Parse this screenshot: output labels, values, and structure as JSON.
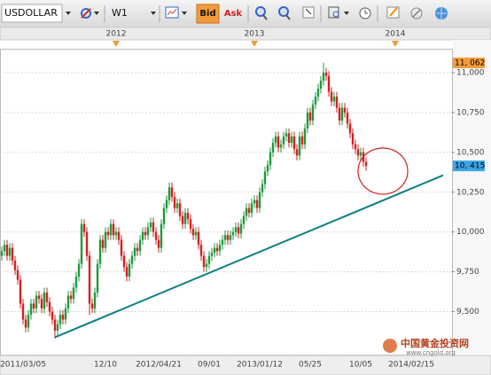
{
  "toolbar": {
    "symbol": "USDOLLAR",
    "timeframe": "W1",
    "bid": "Bid",
    "ask": "Ask"
  },
  "watermark": {
    "name": "中国黄金投资网",
    "url": "www.cngold.org"
  },
  "chart_data": {
    "type": "candlestick",
    "up_color": "#1e9a3c",
    "down_color": "#d42020",
    "grid": true,
    "ylim": [
      9230,
      11145
    ],
    "yticks": [
      {
        "value": 9500,
        "label": "9,500"
      },
      {
        "value": 9750,
        "label": "9,750"
      },
      {
        "value": 10000,
        "label": "10,000"
      },
      {
        "value": 10250,
        "label": "10,250"
      },
      {
        "value": 10500,
        "label": "10,500"
      },
      {
        "value": 10750,
        "label": "10,750"
      },
      {
        "value": 11000,
        "label": "11,000"
      }
    ],
    "categories": [
      null,
      null,
      null,
      null,
      null,
      null,
      null,
      null,
      "2011/03/05",
      null,
      null,
      null,
      null,
      null,
      null,
      null,
      null,
      null,
      null,
      null,
      null,
      null,
      null,
      null,
      null,
      null,
      null,
      null,
      null,
      null,
      null,
      null,
      null,
      null,
      null,
      null,
      null,
      null,
      null,
      "12/10",
      null,
      null,
      null,
      null,
      null,
      null,
      null,
      null,
      null,
      null,
      null,
      null,
      null,
      null,
      null,
      null,
      null,
      null,
      null,
      "2012/04/21",
      null,
      null,
      null,
      null,
      null,
      null,
      null,
      null,
      null,
      null,
      null,
      null,
      null,
      null,
      null,
      null,
      null,
      null,
      "09/01",
      null,
      null,
      null,
      null,
      null,
      null,
      null,
      null,
      null,
      null,
      null,
      null,
      null,
      null,
      null,
      null,
      null,
      null,
      "2013/01/12",
      null,
      null,
      null,
      null,
      null,
      null,
      null,
      null,
      null,
      null,
      null,
      null,
      null,
      null,
      null,
      null,
      null,
      null,
      "05/25",
      null,
      null,
      null,
      null,
      null,
      null,
      null,
      null,
      null,
      null,
      null,
      null,
      null,
      null,
      null,
      null,
      null,
      null,
      "10/05",
      null,
      null,
      null,
      null,
      null,
      null,
      null,
      null,
      null,
      null,
      null,
      null,
      null,
      null,
      null,
      null,
      null,
      null,
      "2014/02/15"
    ],
    "top_categories": [
      null,
      null,
      null,
      null,
      null,
      null,
      null,
      null,
      null,
      null,
      null,
      null,
      null,
      null,
      null,
      null,
      null,
      null,
      null,
      null,
      null,
      null,
      null,
      null,
      null,
      null,
      null,
      null,
      null,
      null,
      null,
      null,
      null,
      null,
      null,
      null,
      null,
      null,
      null,
      null,
      null,
      null,
      null,
      "2012",
      null,
      null,
      null,
      null,
      null,
      null,
      null,
      null,
      null,
      null,
      null,
      null,
      null,
      null,
      null,
      null,
      null,
      null,
      null,
      null,
      null,
      null,
      null,
      null,
      null,
      null,
      null,
      null,
      null,
      null,
      null,
      null,
      null,
      null,
      null,
      null,
      null,
      null,
      null,
      null,
      null,
      null,
      null,
      null,
      null,
      null,
      null,
      null,
      null,
      null,
      null,
      "2013",
      null,
      null,
      null,
      null,
      null,
      null,
      null,
      null,
      null,
      null,
      null,
      null,
      null,
      null,
      null,
      null,
      null,
      null,
      null,
      null,
      null,
      null,
      null,
      null,
      null,
      null,
      null,
      null,
      null,
      null,
      null,
      null,
      null,
      null,
      null,
      null,
      null,
      null,
      null,
      null,
      null,
      null,
      null,
      null,
      null,
      null,
      null,
      null,
      null,
      null,
      null,
      null,
      "2014",
      null,
      null,
      null,
      null,
      null,
      null
    ],
    "open": [
      9850,
      9880,
      9920,
      9850,
      9900,
      9820,
      9760,
      9700,
      9550,
      9450,
      9400,
      9480,
      9550,
      9520,
      9600,
      9580,
      9520,
      9620,
      9560,
      9500,
      9450,
      9380,
      9420,
      9480,
      9450,
      9520,
      9600,
      9580,
      9650,
      9720,
      9800,
      10050,
      10000,
      9850,
      9550,
      9520,
      9620,
      9800,
      9950,
      9900,
      10000,
      9980,
      10050,
      9980,
      10000,
      9950,
      9850,
      9780,
      9720,
      9800,
      9850,
      9900,
      9880,
      9950,
      10000,
      9980,
      10030,
      10060,
      10000,
      9950,
      9900,
      10050,
      10150,
      10200,
      10280,
      10220,
      10150,
      10180,
      10100,
      10050,
      10120,
      10080,
      10020,
      9980,
      10000,
      9920,
      9850,
      9780,
      9800,
      9850,
      9870,
      9900,
      9880,
      9920,
      9950,
      9980,
      9950,
      9980,
      10000,
      10030,
      9990,
      10050,
      10100,
      10150,
      10120,
      10180,
      10200,
      10150,
      10250,
      10300,
      10380,
      10420,
      10500,
      10560,
      10600,
      10530,
      10550,
      10600,
      10620,
      10560,
      10600,
      10520,
      10480,
      10600,
      10550,
      10650,
      10750,
      10700,
      10800,
      10850,
      10900,
      10950,
      11000,
      10980,
      10880,
      10820,
      10850,
      10780,
      10700,
      10780,
      10750,
      10680,
      10620,
      10550,
      10520,
      10480,
      10500,
      10440,
      null,
      null,
      null,
      null,
      null,
      null,
      null,
      null,
      null,
      null,
      null,
      null,
      null,
      null,
      null,
      null,
      null
    ],
    "high": [
      9910,
      9950,
      9950,
      9930,
      9930,
      9850,
      9790,
      9730,
      9580,
      9480,
      9510,
      9580,
      9580,
      9630,
      9630,
      9610,
      9650,
      9650,
      9590,
      9530,
      9480,
      9450,
      9510,
      9510,
      9550,
      9630,
      9630,
      9680,
      9750,
      9830,
      10080,
      10080,
      10030,
      9880,
      9580,
      9650,
      9830,
      9980,
      9980,
      10030,
      10030,
      10080,
      10080,
      10030,
      10030,
      9980,
      9880,
      9810,
      9830,
      9880,
      9930,
      9930,
      9980,
      10030,
      10030,
      10060,
      10090,
      10090,
      10030,
      9980,
      10080,
      10180,
      10230,
      10310,
      10310,
      10250,
      10210,
      10210,
      10130,
      10150,
      10150,
      10110,
      10050,
      10030,
      10030,
      9950,
      9880,
      9830,
      9880,
      9900,
      9930,
      9930,
      9950,
      9980,
      10010,
      10010,
      10010,
      10030,
      10060,
      10060,
      10080,
      10130,
      10180,
      10180,
      10210,
      10230,
      10230,
      10280,
      10330,
      10410,
      10450,
      10530,
      10590,
      10630,
      10630,
      10580,
      10630,
      10650,
      10650,
      10630,
      10630,
      10550,
      10630,
      10630,
      10680,
      10780,
      10780,
      10830,
      10880,
      10930,
      10980,
      11062,
      11030,
      11010,
      10910,
      10880,
      10880,
      10810,
      10810,
      10810,
      10780,
      10710,
      10650,
      10580,
      10550,
      10530,
      10530,
      10470,
      null,
      null,
      null,
      null,
      null,
      null,
      null,
      null,
      null,
      null,
      null,
      null,
      null,
      null,
      null,
      null,
      null
    ],
    "low": [
      9820,
      9850,
      9820,
      9820,
      9790,
      9730,
      9670,
      9520,
      9420,
      9370,
      9370,
      9450,
      9490,
      9490,
      9550,
      9490,
      9490,
      9530,
      9470,
      9420,
      9330,
      9350,
      9390,
      9420,
      9420,
      9490,
      9550,
      9550,
      9620,
      9690,
      9770,
      9970,
      9820,
      9480,
      9490,
      9490,
      9590,
      9770,
      9870,
      9870,
      9950,
      9950,
      9950,
      9950,
      9920,
      9820,
      9750,
      9690,
      9690,
      9770,
      9820,
      9850,
      9850,
      9920,
      9950,
      9950,
      10000,
      9970,
      9920,
      9870,
      9870,
      10020,
      10120,
      10170,
      10190,
      10120,
      10120,
      10070,
      10020,
      10020,
      10050,
      9990,
      9950,
      9950,
      9890,
      9820,
      9750,
      9750,
      9770,
      9820,
      9840,
      9850,
      9850,
      9890,
      9920,
      9920,
      9920,
      9950,
      9970,
      9960,
      9960,
      10020,
      10070,
      10090,
      10090,
      10150,
      10120,
      10120,
      10220,
      10270,
      10350,
      10390,
      10470,
      10530,
      10500,
      10500,
      10520,
      10570,
      10530,
      10530,
      10490,
      10450,
      10450,
      10520,
      10520,
      10620,
      10670,
      10670,
      10770,
      10820,
      10870,
      10920,
      10950,
      10850,
      10790,
      10790,
      10750,
      10670,
      10670,
      10720,
      10650,
      10590,
      10520,
      10490,
      10450,
      10450,
      10410,
      10385,
      null,
      null,
      null,
      null,
      null,
      null,
      null,
      null,
      null,
      null,
      null,
      null,
      null,
      null,
      null,
      null,
      null
    ],
    "close": [
      9880,
      9920,
      9850,
      9900,
      9820,
      9760,
      9700,
      9550,
      9450,
      9400,
      9480,
      9550,
      9520,
      9600,
      9580,
      9520,
      9620,
      9560,
      9500,
      9450,
      9380,
      9420,
      9480,
      9450,
      9520,
      9600,
      9580,
      9650,
      9720,
      9800,
      10050,
      10000,
      9850,
      9550,
      9520,
      9620,
      9800,
      9950,
      9900,
      10000,
      9980,
      10050,
      9980,
      10000,
      9950,
      9850,
      9780,
      9720,
      9800,
      9850,
      9900,
      9880,
      9950,
      10000,
      9980,
      10030,
      10060,
      10000,
      9950,
      9900,
      10050,
      10150,
      10200,
      10280,
      10220,
      10150,
      10180,
      10100,
      10050,
      10120,
      10080,
      10020,
      9980,
      10000,
      9920,
      9850,
      9780,
      9800,
      9850,
      9870,
      9900,
      9880,
      9920,
      9950,
      9980,
      9950,
      9980,
      10000,
      10030,
      9990,
      10050,
      10100,
      10150,
      10120,
      10180,
      10200,
      10150,
      10250,
      10300,
      10380,
      10420,
      10500,
      10560,
      10600,
      10530,
      10550,
      10600,
      10620,
      10560,
      10600,
      10520,
      10480,
      10600,
      10550,
      10650,
      10750,
      10700,
      10800,
      10850,
      10900,
      10950,
      11000,
      10980,
      10880,
      10820,
      10850,
      10780,
      10700,
      10780,
      10750,
      10680,
      10620,
      10550,
      10520,
      10480,
      10500,
      10440,
      10415,
      null,
      null,
      null,
      null,
      null,
      null,
      null,
      null,
      null,
      null,
      null,
      null,
      null,
      null,
      null,
      null,
      null
    ],
    "trendline": {
      "start": 20,
      "end": 166,
      "values": [
        9339,
        10356
      ],
      "color": "#0f8080"
    },
    "price_labels": [
      {
        "value": 11062,
        "label": "11, 062",
        "color": "#f29b3b"
      },
      {
        "value": 10415,
        "label": "10, 415",
        "color": "#3aa6e8"
      }
    ]
  }
}
